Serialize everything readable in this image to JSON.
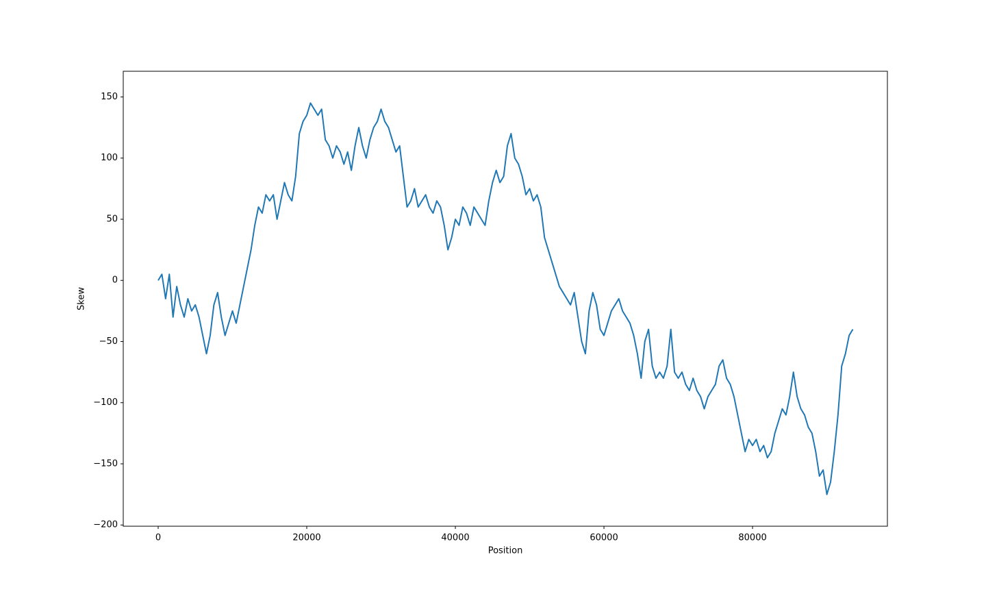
{
  "chart_data": {
    "type": "line",
    "x_label": "Position",
    "y_label": "Skew",
    "color": "#1f77b4",
    "xlim": [
      -4700,
      98150
    ],
    "ylim": [
      -201,
      171
    ],
    "xticks": [
      0,
      20000,
      40000,
      60000,
      80000
    ],
    "yticks": [
      {
        "value": -200,
        "label": "−200"
      },
      {
        "value": -150,
        "label": "−150"
      },
      {
        "value": -100,
        "label": "−100"
      },
      {
        "value": -50,
        "label": "−50"
      },
      0,
      50,
      100,
      150
    ],
    "x": [
      0,
      500,
      1000,
      1500,
      2000,
      2500,
      3000,
      3500,
      4000,
      4500,
      5000,
      5500,
      6000,
      6500,
      7000,
      7500,
      8000,
      8500,
      9000,
      9500,
      10000,
      10500,
      11000,
      11500,
      12000,
      12500,
      13000,
      13500,
      14000,
      14500,
      15000,
      15500,
      16000,
      16500,
      17000,
      17500,
      18000,
      18500,
      19000,
      19500,
      20000,
      20500,
      21000,
      21500,
      22000,
      22500,
      23000,
      23500,
      24000,
      24500,
      25000,
      25500,
      26000,
      26500,
      27000,
      27500,
      28000,
      28500,
      29000,
      29500,
      30000,
      30500,
      31000,
      31500,
      32000,
      32500,
      33000,
      33500,
      34000,
      34500,
      35000,
      35500,
      36000,
      36500,
      37000,
      37500,
      38000,
      38500,
      39000,
      39500,
      40000,
      40500,
      41000,
      41500,
      42000,
      42500,
      43000,
      43500,
      44000,
      44500,
      45000,
      45500,
      46000,
      46500,
      47000,
      47500,
      48000,
      48500,
      49000,
      49500,
      50000,
      50500,
      51000,
      51500,
      52000,
      52500,
      53000,
      53500,
      54000,
      54500,
      55000,
      55500,
      56000,
      56500,
      57000,
      57500,
      58000,
      58500,
      59000,
      59500,
      60000,
      60500,
      61000,
      61500,
      62000,
      62500,
      63000,
      63500,
      64000,
      64500,
      65000,
      65500,
      66000,
      66500,
      67000,
      67500,
      68000,
      68500,
      69000,
      69500,
      70000,
      70500,
      71000,
      71500,
      72000,
      72500,
      73000,
      73500,
      74000,
      74500,
      75000,
      75500,
      76000,
      76500,
      77000,
      77500,
      78000,
      78500,
      79000,
      79500,
      80000,
      80500,
      81000,
      81500,
      82000,
      82500,
      83000,
      83500,
      84000,
      84500,
      85000,
      85500,
      86000,
      86500,
      87000,
      87500,
      88000,
      88500,
      89000,
      89500,
      90000,
      90500,
      91000,
      91500,
      92000,
      92500,
      93000,
      93500
    ],
    "values": [
      0,
      5,
      -15,
      5,
      -30,
      -5,
      -20,
      -30,
      -15,
      -25,
      -20,
      -30,
      -45,
      -60,
      -45,
      -20,
      -10,
      -30,
      -45,
      -35,
      -25,
      -35,
      -20,
      -5,
      10,
      25,
      45,
      60,
      55,
      70,
      65,
      70,
      50,
      65,
      80,
      70,
      65,
      85,
      120,
      130,
      135,
      145,
      140,
      135,
      140,
      115,
      110,
      100,
      110,
      105,
      95,
      105,
      90,
      110,
      125,
      110,
      100,
      115,
      125,
      130,
      140,
      130,
      125,
      115,
      105,
      110,
      85,
      60,
      65,
      75,
      60,
      65,
      70,
      60,
      55,
      65,
      60,
      45,
      25,
      35,
      50,
      45,
      60,
      55,
      45,
      60,
      55,
      50,
      45,
      65,
      80,
      90,
      80,
      85,
      110,
      120,
      100,
      95,
      85,
      70,
      75,
      65,
      70,
      60,
      35,
      25,
      15,
      5,
      -5,
      -10,
      -15,
      -20,
      -10,
      -30,
      -50,
      -60,
      -25,
      -10,
      -20,
      -40,
      -45,
      -35,
      -25,
      -20,
      -15,
      -25,
      -30,
      -35,
      -45,
      -60,
      -80,
      -50,
      -40,
      -70,
      -80,
      -75,
      -80,
      -70,
      -40,
      -75,
      -80,
      -75,
      -85,
      -90,
      -80,
      -90,
      -95,
      -105,
      -95,
      -90,
      -85,
      -70,
      -65,
      -80,
      -85,
      -95,
      -110,
      -125,
      -140,
      -130,
      -135,
      -130,
      -140,
      -135,
      -145,
      -140,
      -125,
      -115,
      -105,
      -110,
      -95,
      -75,
      -95,
      -105,
      -110,
      -120,
      -125,
      -140,
      -160,
      -155,
      -175,
      -165,
      -140,
      -110,
      -70,
      -60,
      -45,
      -40
    ]
  }
}
